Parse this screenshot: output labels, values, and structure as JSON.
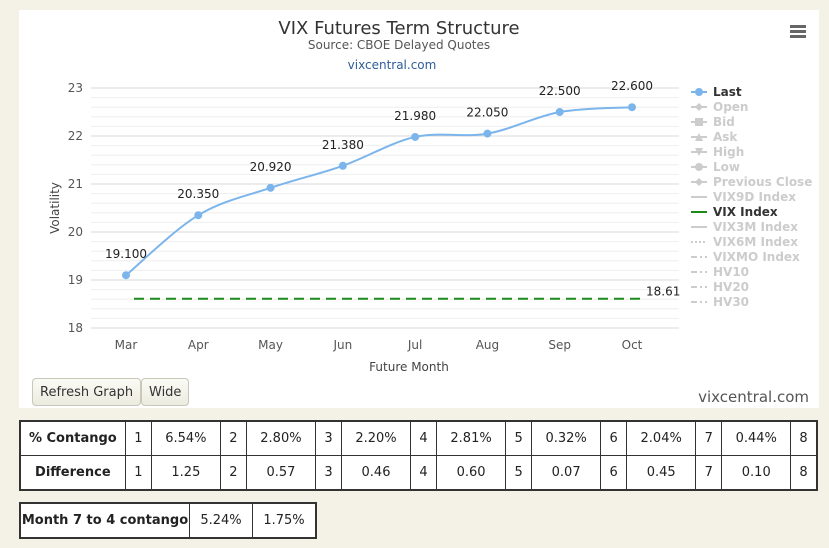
{
  "chart_data": {
    "type": "line",
    "title": "VIX Futures Term Structure",
    "subtitle": "Source: CBOE Delayed Quotes",
    "credit_link": "vixcentral.com",
    "xlabel": "Future Month",
    "ylabel": "Volatility",
    "categories": [
      "Mar",
      "Apr",
      "May",
      "Jun",
      "Jul",
      "Aug",
      "Sep",
      "Oct"
    ],
    "ylim": [
      18,
      23
    ],
    "yticks": [
      18,
      19,
      20,
      21,
      22,
      23
    ],
    "grid": true,
    "legend_position": "right",
    "series": [
      {
        "name": "Last",
        "values": [
          19.1,
          20.35,
          20.92,
          21.38,
          21.98,
          22.05,
          22.5,
          22.6
        ],
        "labels": [
          "19.100",
          "20.350",
          "20.920",
          "21.380",
          "21.980",
          "22.050",
          "22.500",
          "22.600"
        ],
        "color": "#7cb5ec"
      }
    ],
    "reference_line": {
      "name": "VIX Index",
      "value": 18.61,
      "label": "18.61",
      "color": "#1a8a1a"
    },
    "legend": [
      {
        "name": "Last",
        "active": true,
        "symbol": "dot"
      },
      {
        "name": "Open",
        "active": false,
        "symbol": "diamond"
      },
      {
        "name": "Bid",
        "active": false,
        "symbol": "square"
      },
      {
        "name": "Ask",
        "active": false,
        "symbol": "triangle"
      },
      {
        "name": "High",
        "active": false,
        "symbol": "triangle-down"
      },
      {
        "name": "Low",
        "active": false,
        "symbol": "dot"
      },
      {
        "name": "Previous Close",
        "active": false,
        "symbol": "diamond"
      },
      {
        "name": "VIX9D Index",
        "active": false,
        "symbol": "line"
      },
      {
        "name": "VIX Index",
        "active": true,
        "symbol": "dash-green"
      },
      {
        "name": "VIX3M Index",
        "active": false,
        "symbol": "line"
      },
      {
        "name": "VIX6M Index",
        "active": false,
        "symbol": "dotted"
      },
      {
        "name": "VIXMO Index",
        "active": false,
        "symbol": "dashdot"
      },
      {
        "name": "HV10",
        "active": false,
        "symbol": "dashdot"
      },
      {
        "name": "HV20",
        "active": false,
        "symbol": "dashdot"
      },
      {
        "name": "HV30",
        "active": false,
        "symbol": "dashdot"
      }
    ]
  },
  "buttons": {
    "refresh": "Refresh Graph",
    "wide": "Wide"
  },
  "watermark": "vixcentral.com",
  "contango_table": {
    "rows": [
      {
        "label": "% Contango",
        "cells": [
          [
            "1",
            "6.54%"
          ],
          [
            "2",
            "2.80%"
          ],
          [
            "3",
            "2.20%"
          ],
          [
            "4",
            "2.81%"
          ],
          [
            "5",
            "0.32%"
          ],
          [
            "6",
            "2.04%"
          ],
          [
            "7",
            "0.44%"
          ],
          [
            "8",
            ""
          ]
        ]
      },
      {
        "label": "Difference",
        "cells": [
          [
            "1",
            "1.25"
          ],
          [
            "2",
            "0.57"
          ],
          [
            "3",
            "0.46"
          ],
          [
            "4",
            "0.60"
          ],
          [
            "5",
            "0.07"
          ],
          [
            "6",
            "0.45"
          ],
          [
            "7",
            "0.10"
          ],
          [
            "8",
            ""
          ]
        ]
      }
    ]
  },
  "month74_table": {
    "label": "Month 7 to 4 contango",
    "values": [
      "5.24%",
      "1.75%"
    ]
  }
}
